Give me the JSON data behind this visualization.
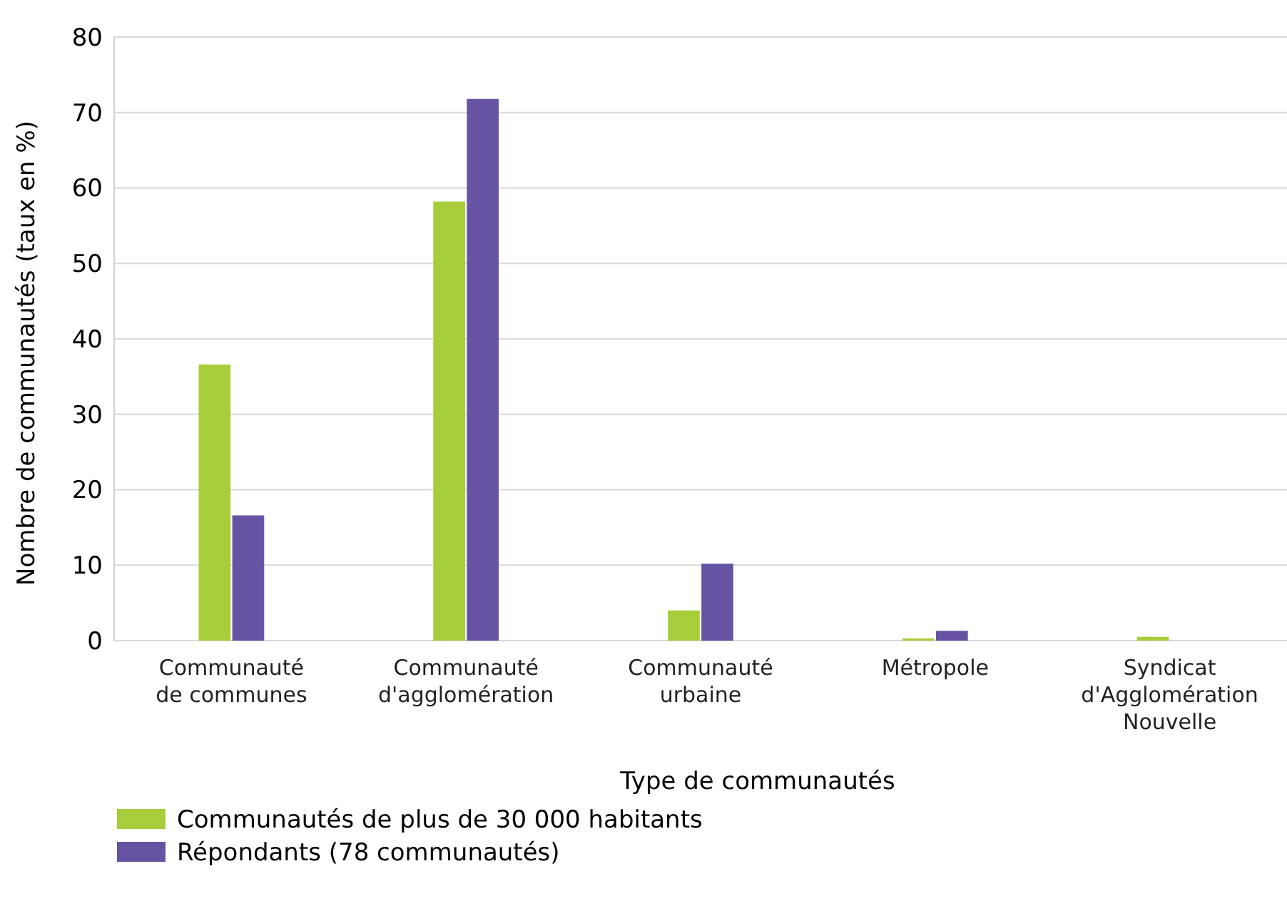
{
  "chart_data": {
    "type": "bar",
    "xlabel": "Type de communautés",
    "ylabel": "Nombre de communautés  (taux en %)",
    "categories": [
      "Communauté\nde communes",
      "Communauté\nd'agglomération",
      "Communauté\nurbaine",
      "Métropole",
      "Syndicat\nd'Agglomération\nNouvelle"
    ],
    "series": [
      {
        "name": "Communautés de plus de 30 000 habitants",
        "color": "#a8cd3a",
        "values": [
          36.6,
          58.2,
          4.0,
          0.3,
          0.5
        ]
      },
      {
        "name": "Répondants (78 communautés)",
        "color": "#6753a3",
        "values": [
          16.6,
          71.8,
          10.2,
          1.3,
          0
        ]
      }
    ],
    "ylim": [
      0,
      80
    ],
    "yticks": [
      0,
      10,
      20,
      30,
      40,
      50,
      60,
      70,
      80
    ],
    "grid": "y",
    "legend": "bottom"
  }
}
